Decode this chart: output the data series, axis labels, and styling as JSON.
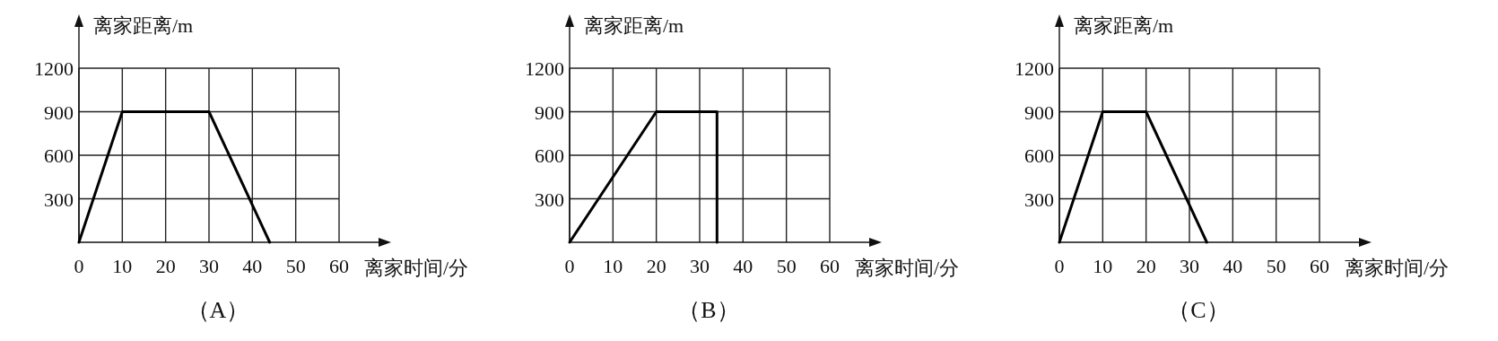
{
  "chart_data": [
    {
      "type": "line",
      "title": "（A）",
      "xlabel": "离家时间/分",
      "ylabel": "离家距离/m",
      "xlim": [
        0,
        60
      ],
      "ylim": [
        0,
        1200
      ],
      "xticks": [
        0,
        10,
        20,
        30,
        40,
        50,
        60
      ],
      "yticks": [
        300,
        600,
        900,
        1200
      ],
      "grid": true,
      "series": [
        {
          "color": "#000000",
          "x": [
            0,
            10,
            30,
            44
          ],
          "values": [
            0,
            900,
            900,
            0
          ]
        }
      ]
    },
    {
      "type": "line",
      "title": "（B）",
      "xlabel": "离家时间/分",
      "ylabel": "离家距离/m",
      "xlim": [
        0,
        60
      ],
      "ylim": [
        0,
        1200
      ],
      "xticks": [
        0,
        10,
        20,
        30,
        40,
        50,
        60
      ],
      "yticks": [
        300,
        600,
        900,
        1200
      ],
      "grid": true,
      "series": [
        {
          "color": "#000000",
          "x": [
            0,
            20,
            34,
            34
          ],
          "values": [
            0,
            900,
            900,
            0
          ]
        }
      ]
    },
    {
      "type": "line",
      "title": "（C）",
      "xlabel": "离家时间/分",
      "ylabel": "离家距离/m",
      "xlim": [
        0,
        60
      ],
      "ylim": [
        0,
        1200
      ],
      "xticks": [
        0,
        10,
        20,
        30,
        40,
        50,
        60
      ],
      "yticks": [
        300,
        600,
        900,
        1200
      ],
      "grid": true,
      "series": [
        {
          "color": "#000000",
          "x": [
            0,
            10,
            20,
            34
          ],
          "values": [
            0,
            900,
            900,
            0
          ]
        }
      ]
    }
  ]
}
